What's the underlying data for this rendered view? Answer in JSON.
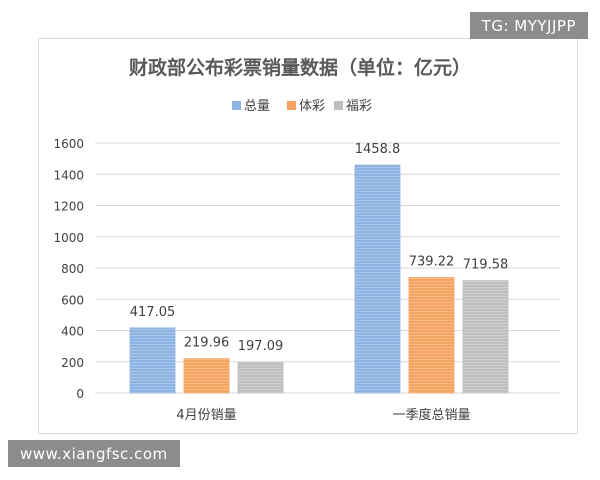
{
  "watermarks": {
    "top": "TG: MYYJJPP",
    "bottom": "www.xiangfsc.com"
  },
  "colors": {
    "总量": "#8db4e2",
    "体彩": "#f4a460",
    "福彩": "#bfbfbf",
    "grid": "#d9d9d9",
    "text": "#404040",
    "title": "#595959"
  },
  "chart_data": {
    "type": "bar",
    "title": "财政部公布彩票销量数据（单位：亿元）",
    "xlabel": "",
    "ylabel": "",
    "categories": [
      "4月份销量",
      "一季度总销量"
    ],
    "series": [
      {
        "name": "总量",
        "values": [
          417.05,
          1458.8
        ],
        "labels": [
          "417.05",
          "1458.8"
        ]
      },
      {
        "name": "体彩",
        "values": [
          219.96,
          739.22
        ],
        "labels": [
          "219.96",
          "739.22"
        ]
      },
      {
        "name": "福彩",
        "values": [
          197.09,
          719.58
        ],
        "labels": [
          "197.09",
          "719.58"
        ]
      }
    ],
    "ylim": [
      0,
      1600
    ],
    "yticks": [
      0,
      200,
      400,
      600,
      800,
      1000,
      1200,
      1400,
      1600
    ],
    "grid": true,
    "legend_position": "top-center"
  }
}
